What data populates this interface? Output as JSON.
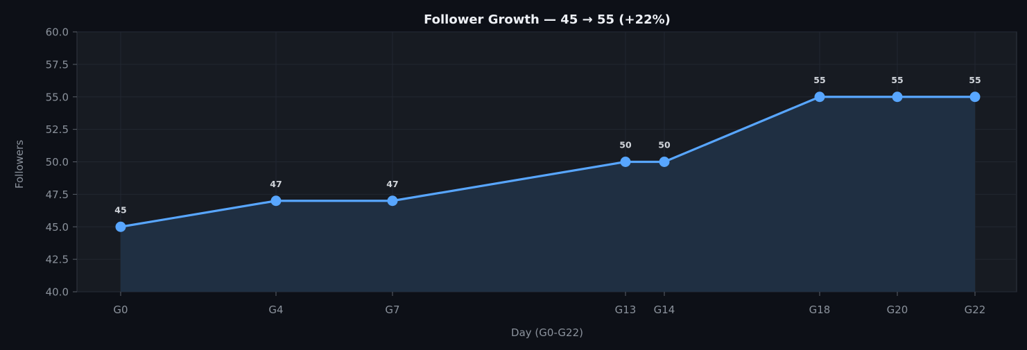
{
  "chart_data": {
    "type": "line",
    "title": "Follower Growth — 45 → 55 (+22%)",
    "xlabel": "Day (G0-G22)",
    "ylabel": "Followers",
    "categories": [
      "G0",
      "G4",
      "G7",
      "G13",
      "G14",
      "G18",
      "G20",
      "G22"
    ],
    "x": [
      0,
      4,
      7,
      13,
      14,
      18,
      20,
      22
    ],
    "values": [
      45,
      47,
      47,
      50,
      50,
      55,
      55,
      55
    ],
    "series": [
      {
        "name": "Followers",
        "values": [
          45,
          47,
          47,
          50,
          50,
          55,
          55,
          55
        ]
      }
    ],
    "data_labels": [
      "45",
      "47",
      "47",
      "50",
      "50",
      "55",
      "55",
      "55"
    ],
    "ylim": [
      40,
      60
    ],
    "xlim": [
      -1.1,
      23.1
    ],
    "yticks": [
      "40.0",
      "42.5",
      "45.0",
      "47.5",
      "50.0",
      "52.5",
      "55.0",
      "57.5",
      "60.0"
    ],
    "grid": true,
    "legend": null,
    "area_fill": true
  },
  "colors": {
    "line": "#58a6ff",
    "fill": "#1f2f42",
    "plot_bg": "#171b22",
    "page_bg": "#0d1017",
    "text": "#8b929c"
  }
}
